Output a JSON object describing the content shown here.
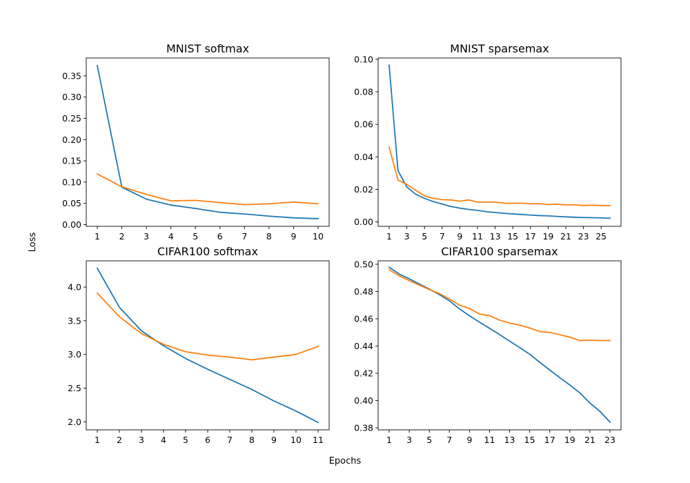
{
  "figure": {
    "xlabel": "Epochs",
    "ylabel": "Loss"
  },
  "colors": {
    "series_a": "#1f77b4",
    "series_b": "#ff7f0e"
  },
  "chart_data": [
    {
      "type": "line",
      "title": "MNIST softmax",
      "x": [
        1,
        2,
        3,
        4,
        5,
        6,
        7,
        8,
        9,
        10
      ],
      "xticks": [
        1,
        2,
        3,
        4,
        5,
        6,
        7,
        8,
        9,
        10
      ],
      "xlim": [
        0.55,
        10.45
      ],
      "ylim": [
        -0.004,
        0.392
      ],
      "yticks": [
        0.0,
        0.05,
        0.1,
        0.15,
        0.2,
        0.25,
        0.3,
        0.35
      ],
      "ytick_labels": [
        "0.00",
        "0.05",
        "0.10",
        "0.15",
        "0.20",
        "0.25",
        "0.30",
        "0.35"
      ],
      "series": [
        {
          "name": "series_a",
          "values": [
            0.374,
            0.088,
            0.06,
            0.046,
            0.038,
            0.029,
            0.025,
            0.02,
            0.016,
            0.014
          ]
        },
        {
          "name": "series_b",
          "values": [
            0.119,
            0.089,
            0.071,
            0.056,
            0.057,
            0.052,
            0.047,
            0.049,
            0.053,
            0.049
          ]
        }
      ]
    },
    {
      "type": "line",
      "title": "MNIST sparsemax",
      "x": [
        1,
        2,
        3,
        4,
        5,
        6,
        7,
        8,
        9,
        10,
        11,
        12,
        13,
        14,
        15,
        16,
        17,
        18,
        19,
        20,
        21,
        22,
        23,
        24,
        25,
        26
      ],
      "xticks": [
        1,
        3,
        5,
        7,
        9,
        11,
        13,
        15,
        17,
        19,
        21,
        23,
        25
      ],
      "xlim": [
        -0.25,
        27.25
      ],
      "ylim": [
        -0.0027,
        0.1008
      ],
      "yticks": [
        0.0,
        0.02,
        0.04,
        0.06,
        0.08,
        0.1
      ],
      "ytick_labels": [
        "0.00",
        "0.02",
        "0.04",
        "0.06",
        "0.08",
        "0.10"
      ],
      "series": [
        {
          "name": "series_a",
          "values": [
            0.0963,
            0.0315,
            0.0215,
            0.017,
            0.0145,
            0.0125,
            0.011,
            0.0095,
            0.0085,
            0.0077,
            0.0071,
            0.0063,
            0.0058,
            0.0053,
            0.0049,
            0.0046,
            0.0042,
            0.0039,
            0.0037,
            0.0034,
            0.0031,
            0.0029,
            0.0027,
            0.0026,
            0.0025,
            0.0023
          ]
        },
        {
          "name": "series_b",
          "values": [
            0.046,
            0.0258,
            0.023,
            0.0195,
            0.016,
            0.0145,
            0.0137,
            0.0135,
            0.0128,
            0.0135,
            0.0122,
            0.0122,
            0.0122,
            0.0115,
            0.0115,
            0.0115,
            0.0112,
            0.0112,
            0.0107,
            0.0109,
            0.0105,
            0.0105,
            0.0101,
            0.0103,
            0.0101,
            0.01
          ]
        }
      ]
    },
    {
      "type": "line",
      "title": "CIFAR100 softmax",
      "x": [
        1,
        2,
        3,
        4,
        5,
        6,
        7,
        8,
        9,
        10,
        11
      ],
      "xticks": [
        1,
        2,
        3,
        4,
        5,
        6,
        7,
        8,
        9,
        10,
        11
      ],
      "xlim": [
        0.5,
        11.5
      ],
      "ylim": [
        1.88,
        4.39
      ],
      "yticks": [
        2.0,
        2.5,
        3.0,
        3.5,
        4.0
      ],
      "ytick_labels": [
        "2.0",
        "2.5",
        "3.0",
        "3.5",
        "4.0"
      ],
      "series": [
        {
          "name": "series_a",
          "values": [
            4.28,
            3.7,
            3.35,
            3.13,
            2.94,
            2.78,
            2.63,
            2.48,
            2.31,
            2.16,
            1.99
          ]
        },
        {
          "name": "series_b",
          "values": [
            3.91,
            3.56,
            3.31,
            3.15,
            3.04,
            2.99,
            2.96,
            2.92,
            2.96,
            3.0,
            3.12
          ]
        }
      ]
    },
    {
      "type": "line",
      "title": "CIFAR100 sparsemax",
      "x": [
        1,
        2,
        3,
        4,
        5,
        6,
        7,
        8,
        9,
        10,
        11,
        12,
        13,
        14,
        15,
        16,
        17,
        18,
        19,
        20,
        21,
        22,
        23
      ],
      "xticks": [
        1,
        3,
        5,
        7,
        9,
        11,
        13,
        15,
        17,
        19,
        21,
        23
      ],
      "xlim": [
        -0.1,
        24.1
      ],
      "ylim": [
        0.3785,
        0.5025
      ],
      "yticks": [
        0.38,
        0.4,
        0.42,
        0.44,
        0.46,
        0.48,
        0.5
      ],
      "ytick_labels": [
        "0.38",
        "0.40",
        "0.42",
        "0.44",
        "0.46",
        "0.48",
        "0.50"
      ],
      "series": [
        {
          "name": "series_a",
          "values": [
            0.4978,
            0.4928,
            0.4893,
            0.4855,
            0.4818,
            0.4777,
            0.4732,
            0.4673,
            0.4622,
            0.4575,
            0.453,
            0.4484,
            0.4436,
            0.4389,
            0.434,
            0.4281,
            0.4224,
            0.4168,
            0.4114,
            0.4056,
            0.3982,
            0.3921,
            0.3842
          ]
        },
        {
          "name": "series_b",
          "values": [
            0.496,
            0.4915,
            0.488,
            0.4847,
            0.4815,
            0.4785,
            0.4745,
            0.47,
            0.4675,
            0.4635,
            0.4623,
            0.459,
            0.4568,
            0.4553,
            0.4532,
            0.4506,
            0.45,
            0.4483,
            0.4465,
            0.444,
            0.4443,
            0.444,
            0.444
          ]
        }
      ]
    }
  ]
}
